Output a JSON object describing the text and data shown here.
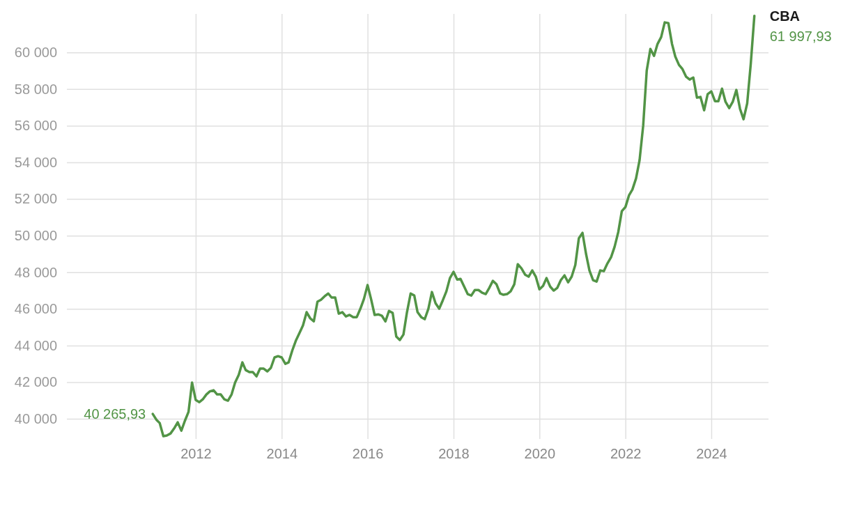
{
  "chart_data": {
    "type": "line",
    "x": [
      "2011-01",
      "2011-02",
      "2011-03",
      "2011-04",
      "2011-05",
      "2011-06",
      "2011-07",
      "2011-08",
      "2011-09",
      "2011-10",
      "2011-11",
      "2011-12",
      "2012-01",
      "2012-02",
      "2012-03",
      "2012-04",
      "2012-05",
      "2012-06",
      "2012-07",
      "2012-08",
      "2012-09",
      "2012-10",
      "2012-11",
      "2012-12",
      "2013-01",
      "2013-02",
      "2013-03",
      "2013-04",
      "2013-05",
      "2013-06",
      "2013-07",
      "2013-08",
      "2013-09",
      "2013-10",
      "2013-11",
      "2013-12",
      "2014-01",
      "2014-02",
      "2014-03",
      "2014-04",
      "2014-05",
      "2014-06",
      "2014-07",
      "2014-08",
      "2014-09",
      "2014-10",
      "2014-11",
      "2014-12",
      "2015-01",
      "2015-02",
      "2015-03",
      "2015-04",
      "2015-05",
      "2015-06",
      "2015-07",
      "2015-08",
      "2015-09",
      "2015-10",
      "2015-11",
      "2015-12",
      "2016-01",
      "2016-02",
      "2016-03",
      "2016-04",
      "2016-05",
      "2016-06",
      "2016-07",
      "2016-08",
      "2016-09",
      "2016-10",
      "2016-11",
      "2016-12",
      "2017-01",
      "2017-02",
      "2017-03",
      "2017-04",
      "2017-05",
      "2017-06",
      "2017-07",
      "2017-08",
      "2017-09",
      "2017-10",
      "2017-11",
      "2017-12",
      "2018-01",
      "2018-02",
      "2018-03",
      "2018-04",
      "2018-05",
      "2018-06",
      "2018-07",
      "2018-08",
      "2018-09",
      "2018-10",
      "2018-11",
      "2018-12",
      "2019-01",
      "2019-02",
      "2019-03",
      "2019-04",
      "2019-05",
      "2019-06",
      "2019-07",
      "2019-08",
      "2019-09",
      "2019-10",
      "2019-11",
      "2019-12",
      "2020-01",
      "2020-02",
      "2020-03",
      "2020-04",
      "2020-05",
      "2020-06",
      "2020-07",
      "2020-08",
      "2020-09",
      "2020-10",
      "2020-11",
      "2020-12",
      "2021-01",
      "2021-02",
      "2021-03",
      "2021-04",
      "2021-05",
      "2021-06",
      "2021-07",
      "2021-08",
      "2021-09",
      "2021-10",
      "2021-11",
      "2021-12",
      "2022-01",
      "2022-02",
      "2022-03",
      "2022-04",
      "2022-05",
      "2022-06",
      "2022-07",
      "2022-08",
      "2022-09",
      "2022-10",
      "2022-11",
      "2022-12",
      "2023-01",
      "2023-02",
      "2023-03",
      "2023-04",
      "2023-05",
      "2023-06",
      "2023-07",
      "2023-08",
      "2023-09",
      "2023-10",
      "2023-11",
      "2023-12",
      "2024-01",
      "2024-02",
      "2024-03",
      "2024-04",
      "2024-05",
      "2024-06",
      "2024-07",
      "2024-08",
      "2024-09",
      "2024-10",
      "2024-11",
      "2024-12",
      "2025-01"
    ],
    "series": [
      {
        "name": "CBA",
        "color": "#529446",
        "values": [
          40265.93,
          39950,
          39770,
          39050,
          39090,
          39200,
          39470,
          39810,
          39350,
          39890,
          40380,
          41980,
          41030,
          40910,
          41060,
          41330,
          41500,
          41560,
          41330,
          41330,
          41060,
          40990,
          41330,
          41980,
          42400,
          43080,
          42660,
          42550,
          42550,
          42320,
          42740,
          42740,
          42590,
          42780,
          43350,
          43420,
          43350,
          43000,
          43080,
          43730,
          44260,
          44680,
          45100,
          45820,
          45480,
          45320,
          46390,
          46500,
          46690,
          46840,
          46620,
          46620,
          45740,
          45820,
          45590,
          45670,
          45550,
          45550,
          46010,
          46540,
          47300,
          46500,
          45670,
          45700,
          45630,
          45320,
          45890,
          45780,
          44490,
          44300,
          44600,
          45820,
          46840,
          46730,
          45820,
          45550,
          45440,
          46010,
          46920,
          46310,
          46010,
          46460,
          46960,
          47680,
          48020,
          47600,
          47640,
          47220,
          46810,
          46730,
          47030,
          47030,
          46880,
          46810,
          47150,
          47530,
          47340,
          46840,
          46770,
          46810,
          46960,
          47340,
          48440,
          48210,
          47870,
          47760,
          48100,
          47760,
          47070,
          47260,
          47680,
          47220,
          47000,
          47150,
          47570,
          47830,
          47450,
          47760,
          48400,
          49850,
          50150,
          48970,
          48100,
          47570,
          47490,
          48100,
          48060,
          48480,
          48820,
          49390,
          50190,
          51330,
          51560,
          52210,
          52510,
          53120,
          54110,
          56010,
          59010,
          60190,
          59810,
          60460,
          60840,
          61640,
          61600,
          60460,
          59770,
          59320,
          59090,
          58670,
          58520,
          58630,
          57530,
          57570,
          56840,
          57720,
          57870,
          57340,
          57340,
          58020,
          57300,
          56960,
          57300,
          57950,
          56920,
          56350,
          57220,
          59350,
          61997.93
        ],
        "value_labels": [
          "40 265,93",
          null,
          null,
          null,
          null,
          null,
          null,
          null,
          null,
          null,
          null,
          null,
          null,
          null,
          null,
          null,
          null,
          null,
          null,
          null,
          null,
          null,
          null,
          null,
          null,
          null,
          null,
          null,
          null,
          null,
          null,
          null,
          null,
          null,
          null,
          null,
          null,
          null,
          null,
          null,
          null,
          null,
          null,
          null,
          null,
          null,
          null,
          null,
          null,
          null,
          null,
          null,
          null,
          null,
          null,
          null,
          null,
          null,
          null,
          null,
          null,
          null,
          null,
          null,
          null,
          null,
          null,
          null,
          null,
          null,
          null,
          null,
          null,
          null,
          null,
          null,
          null,
          null,
          null,
          null,
          null,
          null,
          null,
          null,
          null,
          null,
          null,
          null,
          null,
          null,
          null,
          null,
          null,
          null,
          null,
          null,
          null,
          null,
          null,
          null,
          null,
          null,
          null,
          null,
          null,
          null,
          null,
          null,
          null,
          null,
          null,
          null,
          null,
          null,
          null,
          null,
          null,
          null,
          null,
          null,
          null,
          null,
          null,
          null,
          null,
          null,
          null,
          null,
          null,
          null,
          null,
          null,
          null,
          null,
          null,
          null,
          null,
          null,
          null,
          null,
          null,
          null,
          null,
          null,
          null,
          null,
          null,
          null,
          null,
          null,
          null,
          null,
          null,
          null,
          null,
          null,
          null,
          null,
          null,
          null,
          null,
          null,
          null,
          null,
          null,
          null,
          null,
          null,
          "61 997,93"
        ]
      }
    ],
    "xlim": [
      "2009-01",
      "2025-05"
    ],
    "xticks": [
      "2012",
      "2014",
      "2016",
      "2018",
      "2020",
      "2022",
      "2024"
    ],
    "ylim": [
      38900,
      62100
    ],
    "yticks": [
      {
        "value": 40000,
        "label": "40 000"
      },
      {
        "value": 42000,
        "label": "42 000"
      },
      {
        "value": 44000,
        "label": "44 000"
      },
      {
        "value": 46000,
        "label": "46 000"
      },
      {
        "value": 48000,
        "label": "48 000"
      },
      {
        "value": 50000,
        "label": "50 000"
      },
      {
        "value": 52000,
        "label": "52 000"
      },
      {
        "value": 54000,
        "label": "54 000"
      },
      {
        "value": 56000,
        "label": "56 000"
      },
      {
        "value": 58000,
        "label": "58 000"
      },
      {
        "value": 60000,
        "label": "60 000"
      }
    ],
    "grid": true
  }
}
